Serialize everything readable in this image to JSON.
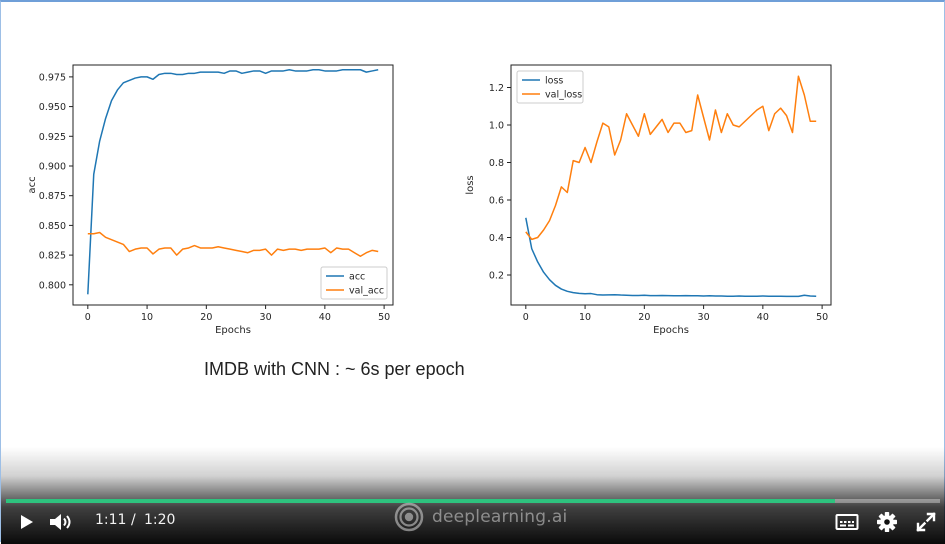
{
  "caption": "IMDB with CNN : ~ 6s per epoch",
  "chart_data": [
    {
      "type": "line",
      "title": "",
      "xlabel": "Epochs",
      "ylabel": "acc",
      "xlim": [
        -2.5,
        51.5
      ],
      "ylim": [
        0.783,
        0.985
      ],
      "xticks": [
        0,
        10,
        20,
        30,
        40,
        50
      ],
      "yticks": [
        0.8,
        0.825,
        0.85,
        0.875,
        0.9,
        0.925,
        0.95,
        0.975
      ],
      "ytick_labels": [
        "0.800",
        "0.825",
        "0.850",
        "0.875",
        "0.900",
        "0.925",
        "0.950",
        "0.975"
      ],
      "legend": "lower-right",
      "grid": false,
      "x": [
        0,
        1,
        2,
        3,
        4,
        5,
        6,
        7,
        8,
        9,
        10,
        11,
        12,
        13,
        14,
        15,
        16,
        17,
        18,
        19,
        20,
        21,
        22,
        23,
        24,
        25,
        26,
        27,
        28,
        29,
        30,
        31,
        32,
        33,
        34,
        35,
        36,
        37,
        38,
        39,
        40,
        41,
        42,
        43,
        44,
        45,
        46,
        47,
        48,
        49
      ],
      "series": [
        {
          "name": "acc",
          "color": "#1f77b4",
          "values": [
            0.792,
            0.893,
            0.921,
            0.94,
            0.955,
            0.964,
            0.97,
            0.972,
            0.974,
            0.975,
            0.975,
            0.973,
            0.977,
            0.978,
            0.978,
            0.977,
            0.977,
            0.978,
            0.978,
            0.979,
            0.979,
            0.979,
            0.979,
            0.978,
            0.98,
            0.98,
            0.978,
            0.979,
            0.98,
            0.98,
            0.978,
            0.98,
            0.98,
            0.98,
            0.981,
            0.98,
            0.98,
            0.98,
            0.981,
            0.981,
            0.98,
            0.98,
            0.98,
            0.981,
            0.981,
            0.981,
            0.981,
            0.979,
            0.98,
            0.981
          ]
        },
        {
          "name": "val_acc",
          "color": "#ff7f0e",
          "values": [
            0.843,
            0.843,
            0.844,
            0.84,
            0.838,
            0.836,
            0.834,
            0.828,
            0.83,
            0.831,
            0.831,
            0.826,
            0.83,
            0.831,
            0.831,
            0.825,
            0.83,
            0.831,
            0.833,
            0.831,
            0.831,
            0.831,
            0.832,
            0.831,
            0.83,
            0.829,
            0.828,
            0.827,
            0.829,
            0.829,
            0.83,
            0.825,
            0.83,
            0.829,
            0.83,
            0.83,
            0.829,
            0.83,
            0.83,
            0.83,
            0.831,
            0.827,
            0.831,
            0.83,
            0.83,
            0.827,
            0.824,
            0.827,
            0.829,
            0.828
          ]
        }
      ]
    },
    {
      "type": "line",
      "title": "",
      "xlabel": "Epochs",
      "ylabel": "loss",
      "xlim": [
        -2.5,
        51.5
      ],
      "ylim": [
        0.04,
        1.32
      ],
      "xticks": [
        0,
        10,
        20,
        30,
        40,
        50
      ],
      "yticks": [
        0.2,
        0.4,
        0.6,
        0.8,
        1.0,
        1.2
      ],
      "ytick_labels": [
        "0.2",
        "0.4",
        "0.6",
        "0.8",
        "1.0",
        "1.2"
      ],
      "legend": "upper-left",
      "grid": false,
      "x": [
        0,
        1,
        2,
        3,
        4,
        5,
        6,
        7,
        8,
        9,
        10,
        11,
        12,
        13,
        14,
        15,
        16,
        17,
        18,
        19,
        20,
        21,
        22,
        23,
        24,
        25,
        26,
        27,
        28,
        29,
        30,
        31,
        32,
        33,
        34,
        35,
        36,
        37,
        38,
        39,
        40,
        41,
        42,
        43,
        44,
        45,
        46,
        47,
        48,
        49
      ],
      "series": [
        {
          "name": "loss",
          "color": "#1f77b4",
          "values": [
            0.505,
            0.34,
            0.27,
            0.215,
            0.175,
            0.145,
            0.125,
            0.113,
            0.106,
            0.102,
            0.1,
            0.101,
            0.095,
            0.093,
            0.094,
            0.095,
            0.093,
            0.092,
            0.091,
            0.091,
            0.092,
            0.09,
            0.09,
            0.091,
            0.09,
            0.089,
            0.089,
            0.09,
            0.089,
            0.089,
            0.088,
            0.089,
            0.088,
            0.088,
            0.087,
            0.087,
            0.088,
            0.087,
            0.087,
            0.087,
            0.088,
            0.087,
            0.087,
            0.087,
            0.086,
            0.086,
            0.086,
            0.092,
            0.088,
            0.087
          ]
        },
        {
          "name": "val_loss",
          "color": "#ff7f0e",
          "values": [
            0.43,
            0.39,
            0.4,
            0.44,
            0.49,
            0.57,
            0.67,
            0.64,
            0.81,
            0.8,
            0.88,
            0.8,
            0.91,
            1.01,
            0.99,
            0.84,
            0.92,
            1.06,
            1.0,
            0.94,
            1.06,
            0.95,
            0.99,
            1.03,
            0.96,
            1.01,
            1.01,
            0.96,
            0.97,
            1.16,
            1.04,
            0.92,
            1.08,
            0.96,
            1.06,
            1.0,
            0.99,
            1.02,
            1.05,
            1.08,
            1.1,
            0.97,
            1.06,
            1.09,
            1.05,
            0.96,
            1.26,
            1.16,
            1.02,
            1.02
          ]
        }
      ]
    }
  ],
  "player": {
    "current_time": "1:11",
    "separator": "/",
    "duration": "1:20",
    "progress": 0.8875,
    "brand": "deeplearning.ai",
    "accent": "#2ec27e",
    "icons": [
      "play-icon",
      "volume-icon",
      "deeplearning-logo-icon",
      "closed-captions-icon",
      "gear-icon",
      "fullscreen-icon"
    ]
  }
}
